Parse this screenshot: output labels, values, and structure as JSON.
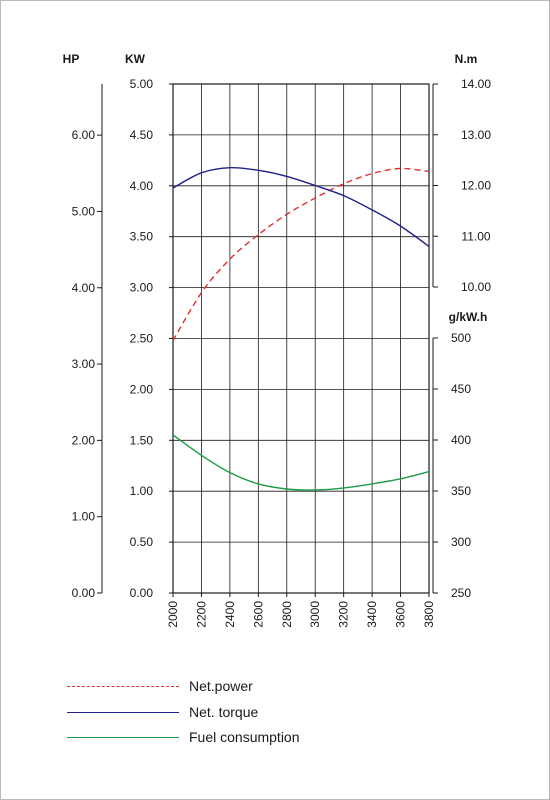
{
  "chart_data": {
    "type": "line",
    "x": {
      "ticks": [
        2000,
        2200,
        2400,
        2600,
        2800,
        3000,
        3200,
        3400,
        3600,
        3800
      ],
      "range": [
        2000,
        3800
      ]
    },
    "axes": {
      "hp": {
        "unit_label": "HP",
        "range": [
          0,
          6.67
        ],
        "ticks": [
          "0.00",
          "1.00",
          "2.00",
          "3.00",
          "4.00",
          "5.00",
          "6.00"
        ]
      },
      "kw": {
        "unit_label": "KW",
        "range": [
          0,
          5
        ],
        "ticks": [
          "0.00",
          "0.50",
          "1.00",
          "1.50",
          "2.00",
          "2.50",
          "3.00",
          "3.50",
          "4.00",
          "4.50",
          "5.00"
        ]
      },
      "torque": {
        "unit_label": "N.m",
        "range": [
          10,
          14
        ],
        "ticks": [
          "10.00",
          "11.00",
          "12.00",
          "13.00",
          "14.00"
        ]
      },
      "fuel": {
        "unit_label": "g/kW.h",
        "range": [
          250,
          500
        ],
        "ticks": [
          "250",
          "300",
          "350",
          "400",
          "450",
          "500"
        ]
      }
    },
    "grid": true,
    "series": [
      {
        "name": "Net.power",
        "axis": "kw",
        "color": "#e03030",
        "dash": "dashed",
        "x": [
          2000,
          2200,
          2400,
          2600,
          2800,
          3000,
          3200,
          3400,
          3600,
          3800
        ],
        "y": [
          2.48,
          2.95,
          3.28,
          3.52,
          3.72,
          3.88,
          4.02,
          4.12,
          4.17,
          4.14
        ]
      },
      {
        "name": "Net. torque",
        "axis": "torque",
        "color": "#20208a",
        "dash": "solid",
        "x": [
          2000,
          2200,
          2400,
          2600,
          2800,
          3000,
          3200,
          3400,
          3600,
          3800
        ],
        "y": [
          11.95,
          12.25,
          12.35,
          12.3,
          12.18,
          12.0,
          11.8,
          11.52,
          11.2,
          10.8
        ]
      },
      {
        "name": "Fuel consumption",
        "axis": "fuel",
        "color": "#1e9a4a",
        "dash": "solid",
        "x": [
          2000,
          2200,
          2400,
          2600,
          2800,
          3000,
          3200,
          3400,
          3600,
          3800
        ],
        "y": [
          405,
          385,
          368,
          357,
          352,
          351,
          353,
          357,
          362,
          369
        ]
      }
    ]
  }
}
